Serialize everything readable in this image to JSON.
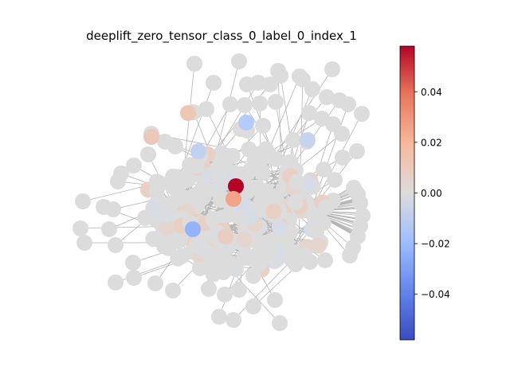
{
  "figure": {
    "title": "deeplift_zero_tensor_class_0_label_0_index_1"
  },
  "colorbar": {
    "colormap": "coolwarm",
    "range": [
      -0.058,
      0.058
    ],
    "ticks": [
      {
        "value": 0.04,
        "label": "0.04"
      },
      {
        "value": 0.02,
        "label": "0.02"
      },
      {
        "value": 0.0,
        "label": "0.00"
      },
      {
        "value": -0.02,
        "label": "−0.02"
      },
      {
        "value": -0.04,
        "label": "−0.04"
      }
    ],
    "stops": [
      "#3b4cc0",
      "#7396f5",
      "#b0cbfc",
      "#dddcdc",
      "#f6b89c",
      "#e7745b",
      "#b40426"
    ]
  },
  "graph": {
    "node_color_default": "#dcdcdc",
    "edge_color": "#b3b3b3",
    "highlighted_nodes": [
      {
        "role": "strong-positive",
        "value": 0.058
      },
      {
        "role": "medium-positive",
        "value": 0.025
      },
      {
        "role": "mild-positive",
        "value": 0.012
      },
      {
        "role": "mild-positive",
        "value": 0.01
      },
      {
        "role": "mild-positive",
        "value": 0.008
      },
      {
        "role": "medium-negative",
        "value": -0.028
      },
      {
        "role": "mild-negative",
        "value": -0.018
      },
      {
        "role": "mild-negative",
        "value": -0.012
      },
      {
        "role": "mild-negative",
        "value": -0.01
      }
    ]
  }
}
